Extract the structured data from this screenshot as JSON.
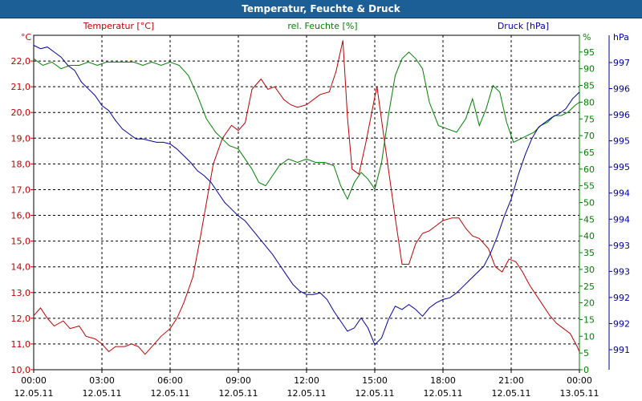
{
  "window": {
    "title": "Temperatur, Feuchte & Druck"
  },
  "colors": {
    "temperature": "#c00000",
    "humidity": "#008000",
    "pressure": "#0000a0",
    "grid": "#000000",
    "title_bar": "#1b5f96"
  },
  "chart_data": {
    "type": "line",
    "title": "Temperatur, Feuchte & Druck",
    "grid": true,
    "x_ticks": [
      {
        "time": "00:00",
        "date": "12.05.11"
      },
      {
        "time": "03:00",
        "date": "12.05.11"
      },
      {
        "time": "06:00",
        "date": "12.05.11"
      },
      {
        "time": "09:00",
        "date": "12.05.11"
      },
      {
        "time": "12:00",
        "date": "12.05.11"
      },
      {
        "time": "15:00",
        "date": "12.05.11"
      },
      {
        "time": "18:00",
        "date": "12.05.11"
      },
      {
        "time": "21:00",
        "date": "12.05.11"
      },
      {
        "time": "00:00",
        "date": "13.05.11"
      }
    ],
    "x_range_hours": [
      0,
      24
    ],
    "axes": {
      "temperature": {
        "label": "Temperatur [°C]",
        "unit": "°C",
        "range": [
          10,
          23
        ],
        "ticks": [
          "10,0",
          "11,0",
          "12,0",
          "13,0",
          "14,0",
          "15,0",
          "16,0",
          "17,0",
          "18,0",
          "19,0",
          "20,0",
          "21,0",
          "22,0"
        ]
      },
      "humidity": {
        "label": "rel. Feuchte [%]",
        "unit": "%",
        "range": [
          0,
          100
        ],
        "ticks": [
          "0",
          "5",
          "10",
          "15",
          "20",
          "25",
          "30",
          "35",
          "40",
          "45",
          "50",
          "55",
          "60",
          "65",
          "70",
          "75",
          "80",
          "85",
          "90",
          "95"
        ]
      },
      "pressure": {
        "label": "Druck [hPa]",
        "unit": "hPa",
        "ticks": [
          "991",
          "992",
          "992",
          "993",
          "993",
          "994",
          "994",
          "995",
          "995",
          "996",
          "996",
          "997"
        ]
      }
    },
    "series": [
      {
        "name": "Temperatur [°C]",
        "axis": "temperature",
        "points": [
          [
            0,
            12.1
          ],
          [
            0.3,
            12.4
          ],
          [
            0.6,
            12.0
          ],
          [
            0.9,
            11.7
          ],
          [
            1.3,
            11.9
          ],
          [
            1.6,
            11.6
          ],
          [
            2.0,
            11.7
          ],
          [
            2.3,
            11.3
          ],
          [
            2.7,
            11.2
          ],
          [
            3.0,
            11.0
          ],
          [
            3.3,
            10.7
          ],
          [
            3.6,
            10.9
          ],
          [
            4.0,
            10.9
          ],
          [
            4.3,
            11.0
          ],
          [
            4.6,
            10.9
          ],
          [
            4.9,
            10.6
          ],
          [
            5.3,
            11.0
          ],
          [
            5.6,
            11.3
          ],
          [
            6.0,
            11.6
          ],
          [
            6.3,
            12.0
          ],
          [
            6.6,
            12.6
          ],
          [
            7.0,
            13.6
          ],
          [
            7.3,
            15.0
          ],
          [
            7.6,
            16.5
          ],
          [
            7.9,
            18.0
          ],
          [
            8.3,
            19.0
          ],
          [
            8.7,
            19.5
          ],
          [
            9.0,
            19.3
          ],
          [
            9.3,
            19.6
          ],
          [
            9.6,
            20.9
          ],
          [
            10.0,
            21.3
          ],
          [
            10.3,
            20.9
          ],
          [
            10.6,
            21.0
          ],
          [
            11.0,
            20.5
          ],
          [
            11.3,
            20.3
          ],
          [
            11.6,
            20.2
          ],
          [
            12.0,
            20.3
          ],
          [
            12.3,
            20.5
          ],
          [
            12.6,
            20.7
          ],
          [
            13.0,
            20.8
          ],
          [
            13.3,
            21.6
          ],
          [
            13.6,
            22.8
          ],
          [
            13.8,
            19.8
          ],
          [
            14.0,
            17.8
          ],
          [
            14.3,
            17.6
          ],
          [
            14.6,
            18.8
          ],
          [
            15.0,
            20.6
          ],
          [
            15.1,
            21.0
          ],
          [
            15.3,
            19.7
          ],
          [
            15.6,
            17.8
          ],
          [
            15.9,
            15.9
          ],
          [
            16.2,
            14.1
          ],
          [
            16.5,
            14.1
          ],
          [
            16.8,
            14.9
          ],
          [
            17.1,
            15.3
          ],
          [
            17.4,
            15.4
          ],
          [
            17.7,
            15.6
          ],
          [
            18.0,
            15.8
          ],
          [
            18.4,
            15.9
          ],
          [
            18.7,
            15.9
          ],
          [
            19.0,
            15.5
          ],
          [
            19.3,
            15.2
          ],
          [
            19.6,
            15.1
          ],
          [
            20.0,
            14.7
          ],
          [
            20.3,
            14.0
          ],
          [
            20.6,
            13.8
          ],
          [
            20.9,
            14.3
          ],
          [
            21.2,
            14.2
          ],
          [
            21.5,
            13.8
          ],
          [
            21.8,
            13.3
          ],
          [
            22.1,
            12.9
          ],
          [
            22.4,
            12.5
          ],
          [
            22.7,
            12.1
          ],
          [
            23.0,
            11.8
          ],
          [
            23.3,
            11.6
          ],
          [
            23.6,
            11.4
          ],
          [
            23.9,
            10.9
          ],
          [
            24.0,
            10.7
          ]
        ]
      },
      {
        "name": "rel. Feuchte [%]",
        "axis": "humidity",
        "points": [
          [
            0,
            93
          ],
          [
            0.4,
            91
          ],
          [
            0.8,
            92
          ],
          [
            1.2,
            90
          ],
          [
            1.6,
            91
          ],
          [
            2.0,
            91
          ],
          [
            2.4,
            92
          ],
          [
            2.8,
            91
          ],
          [
            3.2,
            92
          ],
          [
            3.6,
            92
          ],
          [
            4.0,
            92
          ],
          [
            4.4,
            92
          ],
          [
            4.8,
            91
          ],
          [
            5.2,
            92
          ],
          [
            5.6,
            91
          ],
          [
            6.0,
            92
          ],
          [
            6.4,
            91
          ],
          [
            6.8,
            88
          ],
          [
            7.2,
            82
          ],
          [
            7.6,
            75
          ],
          [
            8.0,
            71
          ],
          [
            8.3,
            69
          ],
          [
            8.6,
            67
          ],
          [
            9.0,
            66
          ],
          [
            9.3,
            63
          ],
          [
            9.6,
            60
          ],
          [
            9.9,
            56
          ],
          [
            10.2,
            55
          ],
          [
            10.5,
            58
          ],
          [
            10.8,
            61
          ],
          [
            11.2,
            63
          ],
          [
            11.6,
            62
          ],
          [
            12.0,
            63
          ],
          [
            12.4,
            62
          ],
          [
            12.8,
            62
          ],
          [
            13.2,
            61
          ],
          [
            13.5,
            55
          ],
          [
            13.8,
            51
          ],
          [
            14.1,
            56
          ],
          [
            14.4,
            59
          ],
          [
            14.7,
            57
          ],
          [
            15.0,
            54
          ],
          [
            15.3,
            62
          ],
          [
            15.6,
            76
          ],
          [
            15.9,
            88
          ],
          [
            16.2,
            93
          ],
          [
            16.5,
            95
          ],
          [
            16.8,
            93
          ],
          [
            17.1,
            90
          ],
          [
            17.4,
            80
          ],
          [
            17.8,
            73
          ],
          [
            18.2,
            72
          ],
          [
            18.6,
            71
          ],
          [
            19.0,
            75
          ],
          [
            19.3,
            81
          ],
          [
            19.6,
            73
          ],
          [
            19.9,
            78
          ],
          [
            20.2,
            85
          ],
          [
            20.5,
            83
          ],
          [
            20.8,
            74
          ],
          [
            21.1,
            68
          ],
          [
            21.4,
            69
          ],
          [
            21.7,
            70
          ],
          [
            22.0,
            71
          ],
          [
            22.3,
            73
          ],
          [
            22.6,
            74
          ],
          [
            22.9,
            76
          ],
          [
            23.2,
            76
          ],
          [
            23.5,
            77
          ],
          [
            23.8,
            79
          ],
          [
            24.0,
            80
          ]
        ]
      },
      {
        "name": "Druck [hPa]",
        "axis": "pressure",
        "points": [
          [
            0,
            97.0
          ],
          [
            0.3,
            96.0
          ],
          [
            0.6,
            96.5
          ],
          [
            0.9,
            95.0
          ],
          [
            1.2,
            93.5
          ],
          [
            1.5,
            91.0
          ],
          [
            1.8,
            89.5
          ],
          [
            2.1,
            86.0
          ],
          [
            2.4,
            84.0
          ],
          [
            2.7,
            82.0
          ],
          [
            3.0,
            79.0
          ],
          [
            3.3,
            77.5
          ],
          [
            3.6,
            74.5
          ],
          [
            3.9,
            72.0
          ],
          [
            4.2,
            70.5
          ],
          [
            4.5,
            69.0
          ],
          [
            4.8,
            69.0
          ],
          [
            5.1,
            68.5
          ],
          [
            5.4,
            68.0
          ],
          [
            5.7,
            68.0
          ],
          [
            6.0,
            67.5
          ],
          [
            6.3,
            66.0
          ],
          [
            6.6,
            64.0
          ],
          [
            6.9,
            62.0
          ],
          [
            7.2,
            59.5
          ],
          [
            7.5,
            58.0
          ],
          [
            7.8,
            56.0
          ],
          [
            8.1,
            53.0
          ],
          [
            8.4,
            50.0
          ],
          [
            8.7,
            48.0
          ],
          [
            9.0,
            46.0
          ],
          [
            9.3,
            44.5
          ],
          [
            9.6,
            42.0
          ],
          [
            9.9,
            39.5
          ],
          [
            10.2,
            37.0
          ],
          [
            10.5,
            34.5
          ],
          [
            10.8,
            31.5
          ],
          [
            11.1,
            28.5
          ],
          [
            11.4,
            25.5
          ],
          [
            11.7,
            23.5
          ],
          [
            12.0,
            22.5
          ],
          [
            12.3,
            22.5
          ],
          [
            12.6,
            23.0
          ],
          [
            12.9,
            21.0
          ],
          [
            13.2,
            17.5
          ],
          [
            13.5,
            14.5
          ],
          [
            13.8,
            11.5
          ],
          [
            14.1,
            12.5
          ],
          [
            14.4,
            15.5
          ],
          [
            14.7,
            12.5
          ],
          [
            15.0,
            7.5
          ],
          [
            15.3,
            9.5
          ],
          [
            15.6,
            15.0
          ],
          [
            15.9,
            19.0
          ],
          [
            16.2,
            18.0
          ],
          [
            16.5,
            19.5
          ],
          [
            16.8,
            18.0
          ],
          [
            17.1,
            16.0
          ],
          [
            17.4,
            18.5
          ],
          [
            17.7,
            20.0
          ],
          [
            18.0,
            21.0
          ],
          [
            18.3,
            21.5
          ],
          [
            18.6,
            23.0
          ],
          [
            18.9,
            25.0
          ],
          [
            19.2,
            27.0
          ],
          [
            19.5,
            29.0
          ],
          [
            19.8,
            31.0
          ],
          [
            20.1,
            35.0
          ],
          [
            20.4,
            40.0
          ],
          [
            20.7,
            46.0
          ],
          [
            21.0,
            51.0
          ],
          [
            21.3,
            58.0
          ],
          [
            21.6,
            64.0
          ],
          [
            21.9,
            69.0
          ],
          [
            22.2,
            72.5
          ],
          [
            22.5,
            74.0
          ],
          [
            22.8,
            75.5
          ],
          [
            23.1,
            76.5
          ],
          [
            23.4,
            78.0
          ],
          [
            23.7,
            81.0
          ],
          [
            24.0,
            83.0
          ]
        ]
      }
    ]
  }
}
